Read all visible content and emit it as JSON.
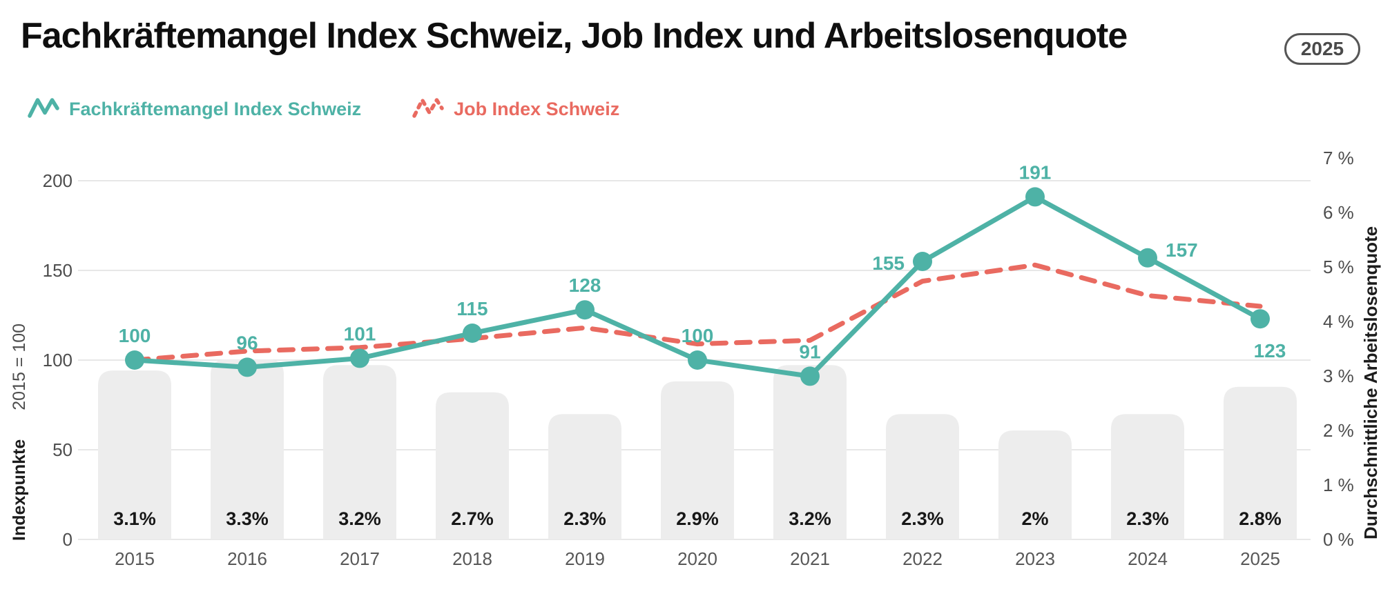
{
  "header": {
    "title": "Fachkräftemangel Index Schweiz, Job Index und Arbeitslosenquote",
    "badge": "2025"
  },
  "legend": [
    {
      "label": "Fachkräftemangel Index Schweiz",
      "color": "#4eb2a6",
      "style": "solid"
    },
    {
      "label": "Job Index Schweiz",
      "color": "#e96a60",
      "style": "dashed"
    }
  ],
  "chart_data": {
    "type": "combo",
    "categories": [
      "2015",
      "2016",
      "2017",
      "2018",
      "2019",
      "2020",
      "2021",
      "2022",
      "2023",
      "2024",
      "2025"
    ],
    "series": [
      {
        "name": "Fachkräftemangel Index Schweiz",
        "type": "line",
        "axis": "left",
        "color": "#4eb2a6",
        "values": [
          100,
          96,
          101,
          115,
          128,
          100,
          91,
          155,
          191,
          157,
          123
        ],
        "point_labels": [
          "100",
          "96",
          "101",
          "115",
          "128",
          "100",
          "91",
          "155",
          "191",
          "157",
          "123"
        ],
        "label_placement": [
          "above",
          "above",
          "above",
          "above",
          "above",
          "above",
          "above",
          "left",
          "above",
          "right",
          "below"
        ]
      },
      {
        "name": "Job Index Schweiz",
        "type": "line",
        "dashed": true,
        "axis": "left",
        "color": "#e96a60",
        "values_estimated": true,
        "values": [
          100,
          105,
          107,
          112,
          118,
          109,
          111,
          144,
          153,
          136,
          130
        ]
      },
      {
        "name": "Durchschnittliche Arbeitslosenquote",
        "type": "bar",
        "axis": "right",
        "color": "#ededed",
        "values": [
          3.1,
          3.3,
          3.2,
          2.7,
          2.3,
          2.9,
          3.2,
          2.3,
          2.0,
          2.3,
          2.8
        ],
        "bar_labels": [
          "3.1%",
          "3.3%",
          "3.2%",
          "2.7%",
          "2.3%",
          "2.9%",
          "3.2%",
          "2.3%",
          "2%",
          "2.3%",
          "2.8%"
        ]
      }
    ],
    "left_axis": {
      "title": "Indexpunkte",
      "note": "2015 = 100",
      "ticks": [
        0,
        50,
        100,
        150,
        200
      ],
      "tick_labels": [
        "0",
        "50",
        "100",
        "150",
        "200"
      ],
      "range": [
        0,
        200
      ]
    },
    "right_axis": {
      "title": "Durchschnittliche Arbeitslosenquote",
      "ticks": [
        0,
        1,
        2,
        3,
        4,
        5,
        6,
        7
      ],
      "tick_labels": [
        "0 %",
        "1 %",
        "2 %",
        "3 %",
        "4 %",
        "5 %",
        "6 %",
        "7 %"
      ],
      "range": [
        0,
        7
      ]
    },
    "grid": true,
    "legend_position": "top-left",
    "colors": {
      "grid": "#e7e7e7",
      "tick_text": "#4d4d4d",
      "category_text": "#575757",
      "bar_label_text": "#171717"
    }
  }
}
